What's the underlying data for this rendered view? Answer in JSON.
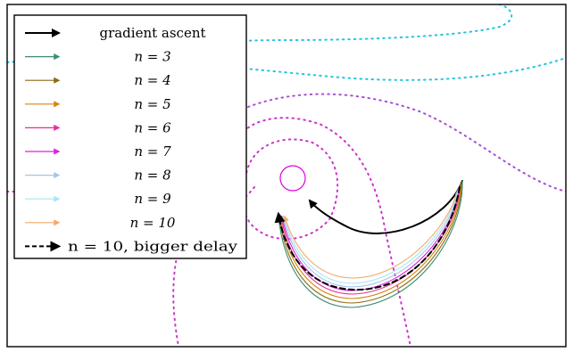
{
  "chart_data": {
    "type": "line",
    "title": "",
    "xlabel": "",
    "ylabel": "",
    "grid": false,
    "legend_position": "top-left",
    "target_marker_color": "#e000e0",
    "legend": [
      {
        "label": "gradient ascent",
        "color": "#000000",
        "style": "solid-thick"
      },
      {
        "label": "n = 3",
        "color": "#3a8f6e",
        "style": "solid"
      },
      {
        "label": "n = 4",
        "color": "#8c6a12",
        "style": "solid"
      },
      {
        "label": "n = 5",
        "color": "#d4860c",
        "style": "solid"
      },
      {
        "label": "n = 6",
        "color": "#e62ea0",
        "style": "solid"
      },
      {
        "label": "n = 7",
        "color": "#dd21dd",
        "style": "solid"
      },
      {
        "label": "n = 8",
        "color": "#a8c4e8",
        "style": "solid"
      },
      {
        "label": "n = 9",
        "color": "#a8e6f5",
        "style": "solid"
      },
      {
        "label": "n = 10",
        "color": "#f5a868",
        "style": "solid"
      },
      {
        "label": "n = 10, bigger delay",
        "color": "#000000",
        "style": "dashed"
      }
    ],
    "contour_colors": [
      "#22c4e0",
      "#a64ed8",
      "#cc33cc"
    ]
  }
}
